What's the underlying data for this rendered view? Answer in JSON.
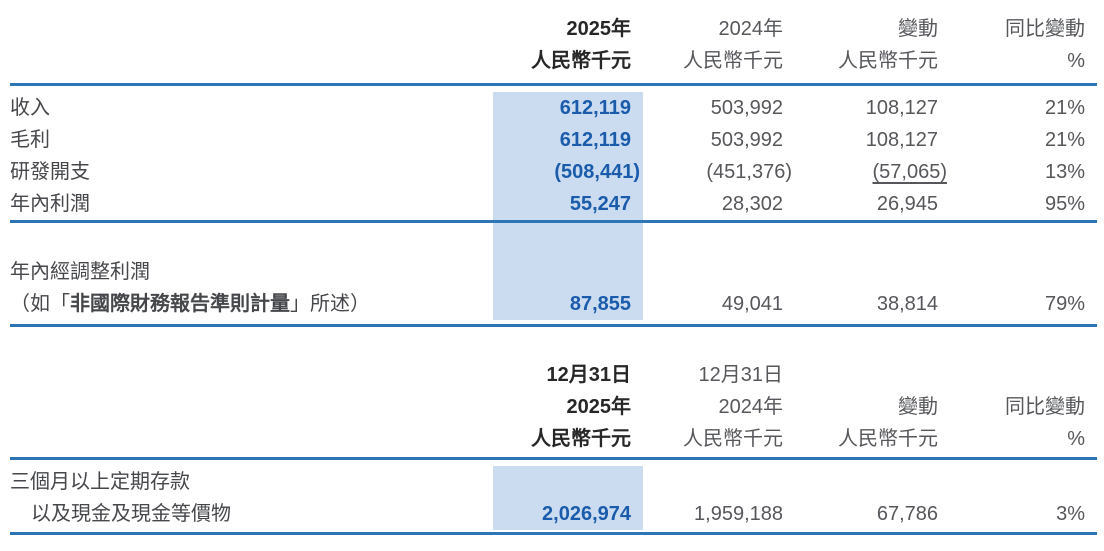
{
  "colors": {
    "highlight": "#cbdcf0",
    "rule": "#2e75b5",
    "accent": "#1a5cab",
    "dark": "#272727",
    "gray": "#56575b",
    "label": "#46474b"
  },
  "table1": {
    "header": {
      "col_2025": [
        "2025年",
        "人民幣千元"
      ],
      "col_2024": [
        "2024年",
        "人民幣千元"
      ],
      "col_change": [
        "變動",
        "人民幣千元"
      ],
      "col_yoy": [
        "同比變動",
        "%"
      ]
    },
    "rows": [
      {
        "label": "收入",
        "v2025": "612,119",
        "v2024": "503,992",
        "change": "108,127",
        "yoy": "21%"
      },
      {
        "label": "毛利",
        "v2025": "612,119",
        "v2024": "503,992",
        "change": "108,127",
        "yoy": "21%"
      },
      {
        "label": "研發開支",
        "v2025": "(508,441)",
        "v2024": "(451,376)",
        "change": "(57,065)",
        "yoy": "13%"
      },
      {
        "label": "年內利潤",
        "v2025": "55,247",
        "v2024": "28,302",
        "change": "26,945",
        "yoy": "95%"
      }
    ],
    "adjusted_row": {
      "label_line1": "年內經調整利潤",
      "label_line2_prefix": "（如「",
      "label_line2_bold": "非國際財務報告準則計量",
      "label_line2_suffix": "」所述）",
      "v2025": "87,855",
      "v2024": "49,041",
      "change": "38,814",
      "yoy": "79%"
    }
  },
  "table2": {
    "header": {
      "col_2025": [
        "12月31日",
        "2025年",
        "人民幣千元"
      ],
      "col_2024": [
        "12月31日",
        "2024年",
        "人民幣千元"
      ],
      "col_change": [
        "變動",
        "人民幣千元"
      ],
      "col_yoy": [
        "同比變動",
        "%"
      ]
    },
    "row": {
      "label_line1": "三個月以上定期存款",
      "label_line2": "以及現金及現金等價物",
      "v2025": "2,026,974",
      "v2024": "1,959,188",
      "change": "67,786",
      "yoy": "3%"
    }
  }
}
